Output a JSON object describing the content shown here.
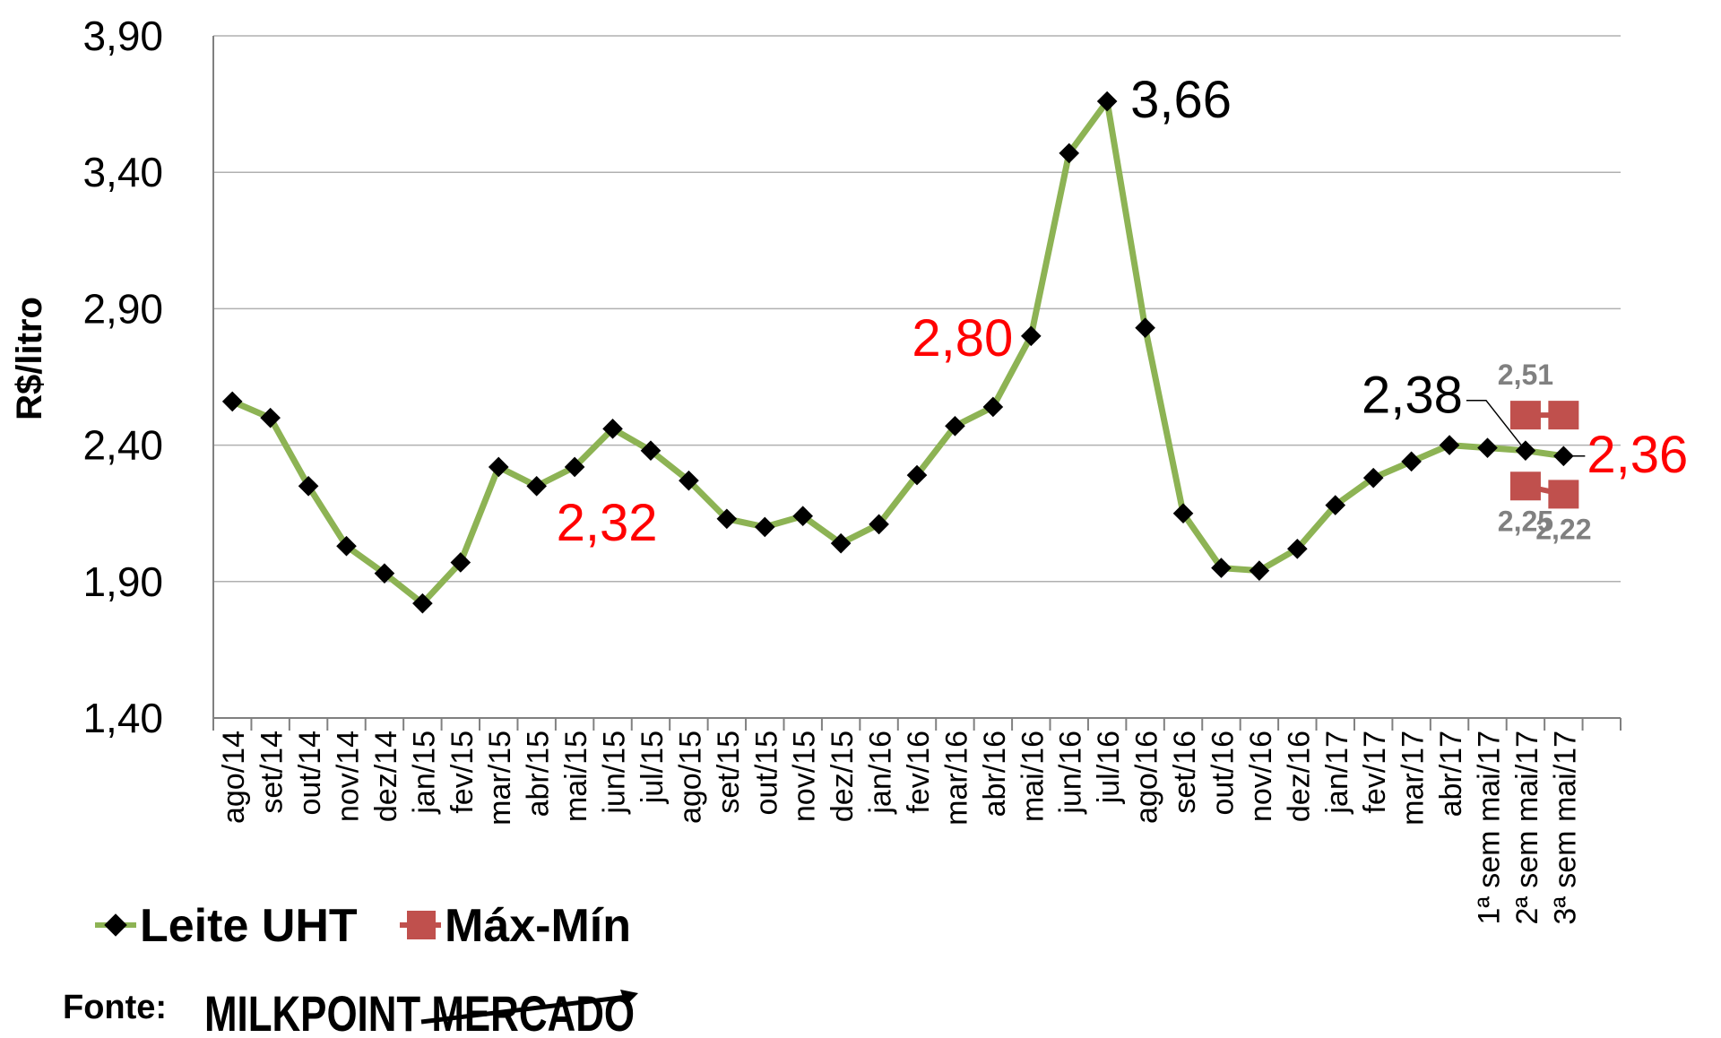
{
  "chart_data": {
    "type": "line",
    "ylabel": "R$/litro",
    "ylim": [
      1.4,
      3.9
    ],
    "yticks": [
      "1,40",
      "1,90",
      "2,40",
      "2,90",
      "3,40",
      "3,90"
    ],
    "categories": [
      "ago/14",
      "set/14",
      "out/14",
      "nov/14",
      "dez/14",
      "jan/15",
      "fev/15",
      "mar/15",
      "abr/15",
      "mai/15",
      "jun/15",
      "jul/15",
      "ago/15",
      "set/15",
      "out/15",
      "nov/15",
      "dez/15",
      "jan/16",
      "fev/16",
      "mar/16",
      "abr/16",
      "mai/16",
      "jun/16",
      "jul/16",
      "ago/16",
      "set/16",
      "out/16",
      "nov/16",
      "dez/16",
      "jan/17",
      "fev/17",
      "mar/17",
      "abr/17",
      "1ª sem mai/17",
      "2ª sem mai/17",
      "3ª sem mai/17"
    ],
    "grid": true,
    "legend_placement": "bottom-left",
    "series": [
      {
        "name": "Leite UHT",
        "color": "#8db354",
        "marker": "diamond",
        "values": [
          2.56,
          2.5,
          2.25,
          2.03,
          1.93,
          1.82,
          1.97,
          2.32,
          2.25,
          2.32,
          2.46,
          2.38,
          2.27,
          2.13,
          2.1,
          2.14,
          2.04,
          2.11,
          2.29,
          2.47,
          2.54,
          2.8,
          3.47,
          3.66,
          2.83,
          2.15,
          1.95,
          1.94,
          2.02,
          2.18,
          2.28,
          2.34,
          2.4,
          2.39,
          2.38,
          2.36
        ]
      },
      {
        "name": "Máx-Mín",
        "color": "#c0504d",
        "marker": "square",
        "points": [
          {
            "x": "2ª sem mai/17",
            "y": 2.51
          },
          {
            "x": "3ª sem mai/17",
            "y": 2.51
          },
          {
            "x": "2ª sem mai/17",
            "y": 2.25
          },
          {
            "x": "3ª sem mai/17",
            "y": 2.22
          }
        ]
      }
    ],
    "annotations": [
      {
        "text": "3,66",
        "x": "jul/16",
        "y": 3.66,
        "color": "#000000",
        "size": "large",
        "anchor": "right"
      },
      {
        "text": "2,80",
        "x": "mai/16",
        "y": 2.8,
        "color": "#ff0000",
        "size": "large",
        "anchor": "left"
      },
      {
        "text": "2,32",
        "x": "mai/15",
        "y": 2.32,
        "color": "#ff0000",
        "size": "large",
        "anchor": "below"
      },
      {
        "text": "2,38",
        "x": "2ª sem mai/17",
        "y": 2.38,
        "color": "#000000",
        "size": "large",
        "anchor": "upper-left"
      },
      {
        "text": "2,36",
        "x": "3ª sem mai/17",
        "y": 2.36,
        "color": "#ff0000",
        "size": "large",
        "anchor": "right"
      },
      {
        "text": "2,51",
        "x": "2ª sem mai/17",
        "y": 2.51,
        "color": "#808080",
        "size": "small",
        "anchor": "above"
      },
      {
        "text": "2,25",
        "x": "2ª sem mai/17",
        "y": 2.25,
        "color": "#808080",
        "size": "small",
        "anchor": "below"
      },
      {
        "text": "2,22",
        "x": "3ª sem mai/17",
        "y": 2.22,
        "color": "#808080",
        "size": "small",
        "anchor": "below"
      }
    ]
  },
  "footer": {
    "source_label": "Fonte:",
    "brand_text": "MILKPOINT MERCADO"
  }
}
